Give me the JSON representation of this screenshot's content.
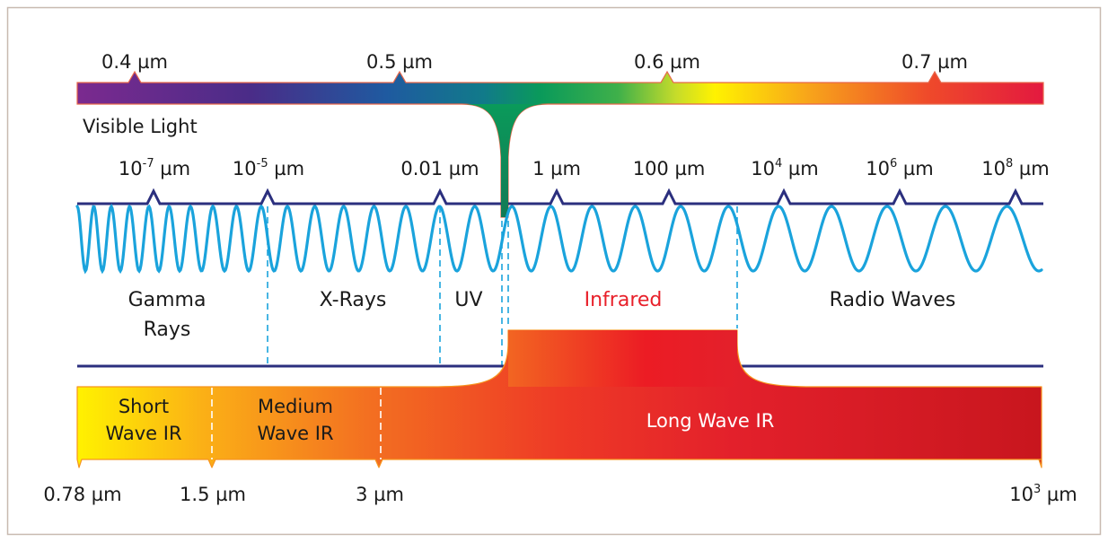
{
  "visible_scale": {
    "label": "Visible Light",
    "ticks": [
      "0.4 µm",
      "0.5 µm",
      "0.6 µm",
      "0.7 µm"
    ]
  },
  "em_scale": {
    "ticks": [
      {
        "base": "10",
        "exp": "-7",
        "unit": " µm"
      },
      {
        "base": "10",
        "exp": "-5",
        "unit": " µm"
      },
      {
        "base": "0.01 µm",
        "exp": "",
        "unit": ""
      },
      {
        "base": "1 µm",
        "exp": "",
        "unit": ""
      },
      {
        "base": "100 µm",
        "exp": "",
        "unit": ""
      },
      {
        "base": "10",
        "exp": "4",
        "unit": " µm"
      },
      {
        "base": "10",
        "exp": "6",
        "unit": " µm"
      },
      {
        "base": "10",
        "exp": "8",
        "unit": " µm"
      }
    ]
  },
  "bands": {
    "gamma_line1": "Gamma",
    "gamma_line2": "Rays",
    "xrays": "X-Rays",
    "uv": "UV",
    "infrared": "Infrared",
    "radio": "Radio Waves"
  },
  "ir_bands": {
    "short_line1": "Short",
    "short_line2": "Wave IR",
    "medium_line1": "Medium",
    "medium_line2": "Wave IR",
    "long": "Long Wave IR"
  },
  "ir_scale": {
    "ticks": [
      {
        "base": "0.78 µm",
        "exp": "",
        "unit": ""
      },
      {
        "base": "1.5 µm",
        "exp": "",
        "unit": ""
      },
      {
        "base": "3 µm",
        "exp": "",
        "unit": ""
      },
      {
        "base": "10",
        "exp": "3",
        "unit": " µm"
      }
    ]
  },
  "colors": {
    "scale_line": "#2b2f7e",
    "wave": "#1aa3dc",
    "infrared_text": "#e8202a",
    "frame": "#c8b9b0"
  }
}
